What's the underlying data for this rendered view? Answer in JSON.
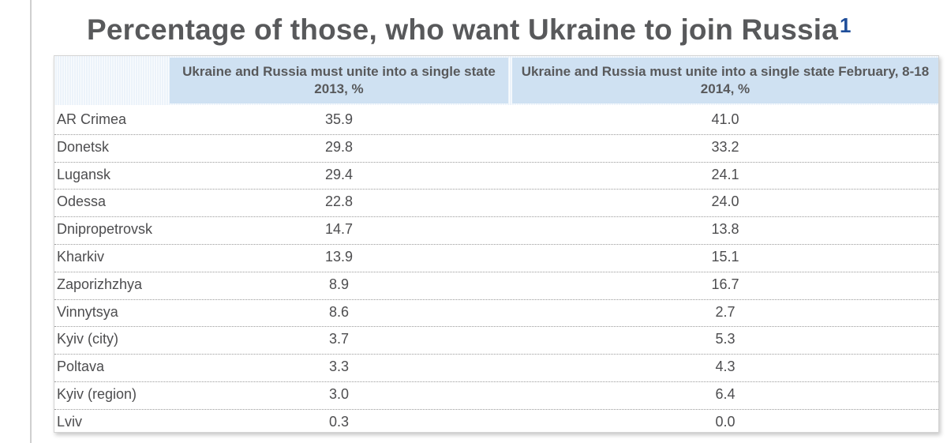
{
  "chart_data": {
    "type": "table",
    "title": "Percentage of those, who want Ukraine to join Russia",
    "title_footnote": "1",
    "columns": [
      "",
      "Ukraine and Russia must unite into a single state 2013, %",
      "Ukraine and Russia must unite into a single state February, 8-18 2014, %"
    ],
    "rows": [
      {
        "region": "AR Crimea",
        "v2013": "35.9",
        "v2014": "41.0"
      },
      {
        "region": "Donetsk",
        "v2013": "29.8",
        "v2014": "33.2"
      },
      {
        "region": "Lugansk",
        "v2013": "29.4",
        "v2014": "24.1"
      },
      {
        "region": "Odessa",
        "v2013": "22.8",
        "v2014": "24.0"
      },
      {
        "region": "Dnipropetrovsk",
        "v2013": "14.7",
        "v2014": "13.8"
      },
      {
        "region": "Kharkiv",
        "v2013": "13.9",
        "v2014": "15.1"
      },
      {
        "region": "Zaporizhzhya",
        "v2013": "8.9",
        "v2014": "16.7"
      },
      {
        "region": "Vinnytsya",
        "v2013": "8.6",
        "v2014": "2.7"
      },
      {
        "region": "Kyiv (city)",
        "v2013": "3.7",
        "v2014": "5.3"
      },
      {
        "region": "Poltava",
        "v2013": "3.3",
        "v2014": "4.3"
      },
      {
        "region": "Kyiv (region)",
        "v2013": "3.0",
        "v2014": "6.4"
      },
      {
        "region": "Lviv",
        "v2013": "0.3",
        "v2014": "0.0"
      }
    ]
  },
  "colors": {
    "title": "#58595b",
    "footnote": "#1f4e9a",
    "header_bg": "#cfe1f2",
    "text": "#4d4d4f"
  }
}
